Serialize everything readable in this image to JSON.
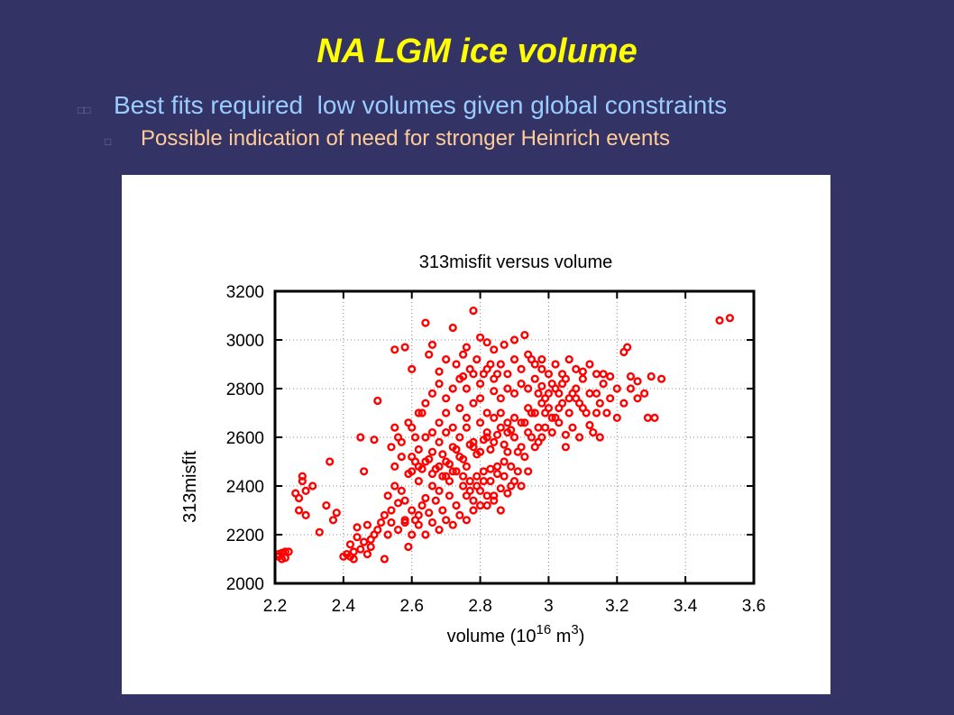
{
  "slide": {
    "title": "NA LGM ice volume",
    "bullets": [
      {
        "text": "Best fits required  low volumes given global constraints"
      },
      {
        "text": "Possible indication of need for stronger Heinrich events"
      }
    ]
  },
  "colors": {
    "background": "#333366",
    "title": "#ffff00",
    "bullet1": "#99ccff",
    "bullet2": "#ffcc99",
    "points": "#ff0000"
  },
  "chart_data": {
    "type": "scatter",
    "title": "313misfit versus volume",
    "xlabel": "volume (10",
    "xlabel_sup1": "16",
    "xlabel_mid": " m",
    "xlabel_sup2": "3",
    "xlabel_end": ")",
    "ylabel": "313misfit",
    "xlim": [
      2.2,
      3.6
    ],
    "ylim": [
      2000,
      3200
    ],
    "xticks": [
      "2.2",
      "2.4",
      "2.6",
      "2.8",
      "3",
      "3.2",
      "3.4",
      "3.6"
    ],
    "yticks": [
      "2000",
      "2200",
      "2400",
      "2600",
      "2800",
      "3000",
      "3200"
    ],
    "grid": true,
    "marker_color": "#ff0000",
    "points": [
      [
        2.21,
        2120
      ],
      [
        2.22,
        2100
      ],
      [
        2.23,
        2130
      ],
      [
        2.21,
        2110
      ],
      [
        2.22,
        2125
      ],
      [
        2.23,
        2105
      ],
      [
        2.24,
        2130
      ],
      [
        2.26,
        2370
      ],
      [
        2.27,
        2300
      ],
      [
        2.28,
        2440
      ],
      [
        2.28,
        2420
      ],
      [
        2.29,
        2380
      ],
      [
        2.31,
        2400
      ],
      [
        2.27,
        2350
      ],
      [
        2.29,
        2280
      ],
      [
        2.33,
        2210
      ],
      [
        2.35,
        2320
      ],
      [
        2.36,
        2500
      ],
      [
        2.37,
        2260
      ],
      [
        2.38,
        2290
      ],
      [
        2.4,
        2110
      ],
      [
        2.42,
        2110
      ],
      [
        2.43,
        2100
      ],
      [
        2.44,
        2230
      ],
      [
        2.45,
        2600
      ],
      [
        2.46,
        2460
      ],
      [
        2.47,
        2120
      ],
      [
        2.48,
        2150
      ],
      [
        2.49,
        2590
      ],
      [
        2.5,
        2750
      ],
      [
        2.52,
        2100
      ],
      [
        2.53,
        2200
      ],
      [
        2.54,
        2250
      ],
      [
        2.55,
        2960
      ],
      [
        2.55,
        2400
      ],
      [
        2.56,
        2330
      ],
      [
        2.57,
        2380
      ],
      [
        2.58,
        2970
      ],
      [
        2.58,
        2250
      ],
      [
        2.59,
        2150
      ],
      [
        2.6,
        2880
      ],
      [
        2.6,
        2520
      ],
      [
        2.62,
        2280
      ],
      [
        2.63,
        2700
      ],
      [
        2.64,
        3070
      ],
      [
        2.65,
        2940
      ],
      [
        2.66,
        2980
      ],
      [
        2.68,
        2870
      ],
      [
        2.7,
        2920
      ],
      [
        2.72,
        3050
      ],
      [
        2.75,
        2850
      ],
      [
        2.76,
        2970
      ],
      [
        2.78,
        3120
      ],
      [
        2.8,
        3010
      ],
      [
        2.82,
        2990
      ],
      [
        2.84,
        2960
      ],
      [
        2.87,
        2980
      ],
      [
        2.9,
        3000
      ],
      [
        2.93,
        3020
      ],
      [
        2.95,
        2920
      ],
      [
        2.98,
        2880
      ],
      [
        3.0,
        2860
      ],
      [
        3.02,
        2800
      ],
      [
        3.04,
        2820
      ],
      [
        3.06,
        2760
      ],
      [
        3.08,
        2880
      ],
      [
        3.1,
        2840
      ],
      [
        3.12,
        2780
      ],
      [
        3.14,
        2700
      ],
      [
        3.15,
        2600
      ],
      [
        3.16,
        2860
      ],
      [
        3.18,
        2850
      ],
      [
        3.2,
        2680
      ],
      [
        3.22,
        2950
      ],
      [
        3.24,
        2850
      ],
      [
        3.26,
        2830
      ],
      [
        3.28,
        2780
      ],
      [
        3.3,
        2850
      ],
      [
        3.31,
        2680
      ],
      [
        3.29,
        2680
      ],
      [
        3.23,
        2970
      ],
      [
        3.33,
        2840
      ],
      [
        3.5,
        3080
      ],
      [
        3.53,
        3090
      ],
      [
        2.62,
        2420
      ],
      [
        2.64,
        2350
      ],
      [
        2.66,
        2450
      ],
      [
        2.68,
        2380
      ],
      [
        2.7,
        2500
      ],
      [
        2.72,
        2460
      ],
      [
        2.74,
        2520
      ],
      [
        2.76,
        2480
      ],
      [
        2.78,
        2560
      ],
      [
        2.8,
        2540
      ],
      [
        2.82,
        2600
      ],
      [
        2.84,
        2580
      ],
      [
        2.86,
        2640
      ],
      [
        2.88,
        2620
      ],
      [
        2.9,
        2680
      ],
      [
        2.92,
        2660
      ],
      [
        2.94,
        2720
      ],
      [
        2.96,
        2700
      ],
      [
        2.98,
        2740
      ],
      [
        3.0,
        2720
      ],
      [
        3.02,
        2680
      ],
      [
        3.04,
        2740
      ],
      [
        3.06,
        2700
      ],
      [
        3.08,
        2760
      ],
      [
        3.1,
        2720
      ],
      [
        3.12,
        2650
      ],
      [
        3.14,
        2780
      ],
      [
        2.58,
        2340
      ],
      [
        2.6,
        2300
      ],
      [
        2.61,
        2260
      ],
      [
        2.63,
        2320
      ],
      [
        2.65,
        2290
      ],
      [
        2.67,
        2340
      ],
      [
        2.69,
        2300
      ],
      [
        2.71,
        2360
      ],
      [
        2.73,
        2320
      ],
      [
        2.75,
        2400
      ],
      [
        2.77,
        2380
      ],
      [
        2.79,
        2440
      ],
      [
        2.81,
        2420
      ],
      [
        2.83,
        2470
      ],
      [
        2.85,
        2450
      ],
      [
        2.87,
        2500
      ],
      [
        2.89,
        2480
      ],
      [
        2.91,
        2540
      ],
      [
        2.93,
        2520
      ],
      [
        2.95,
        2600
      ],
      [
        2.97,
        2580
      ],
      [
        2.99,
        2640
      ],
      [
        3.01,
        2620
      ],
      [
        3.03,
        2660
      ],
      [
        3.05,
        2610
      ],
      [
        2.66,
        2620
      ],
      [
        2.68,
        2660
      ],
      [
        2.7,
        2700
      ],
      [
        2.72,
        2640
      ],
      [
        2.74,
        2720
      ],
      [
        2.76,
        2680
      ],
      [
        2.78,
        2740
      ],
      [
        2.8,
        2760
      ],
      [
        2.82,
        2700
      ],
      [
        2.84,
        2790
      ],
      [
        2.86,
        2760
      ],
      [
        2.88,
        2800
      ],
      [
        2.9,
        2780
      ],
      [
        2.92,
        2820
      ],
      [
        2.94,
        2800
      ],
      [
        2.96,
        2840
      ],
      [
        2.98,
        2810
      ],
      [
        3.0,
        2780
      ],
      [
        2.62,
        2550
      ],
      [
        2.64,
        2600
      ],
      [
        2.66,
        2540
      ],
      [
        2.68,
        2580
      ],
      [
        2.7,
        2620
      ],
      [
        2.72,
        2560
      ],
      [
        2.74,
        2600
      ],
      [
        2.76,
        2640
      ],
      [
        2.78,
        2580
      ],
      [
        2.8,
        2660
      ],
      [
        2.82,
        2620
      ],
      [
        2.84,
        2680
      ],
      [
        2.86,
        2700
      ],
      [
        2.88,
        2660
      ],
      [
        2.55,
        2480
      ],
      [
        2.57,
        2520
      ],
      [
        2.59,
        2450
      ],
      [
        2.61,
        2500
      ],
      [
        2.63,
        2470
      ],
      [
        2.65,
        2510
      ],
      [
        2.67,
        2470
      ],
      [
        2.69,
        2530
      ],
      [
        2.71,
        2490
      ],
      [
        2.73,
        2550
      ],
      [
        2.75,
        2510
      ],
      [
        2.77,
        2570
      ],
      [
        2.79,
        2530
      ],
      [
        2.81,
        2590
      ],
      [
        2.83,
        2550
      ],
      [
        2.85,
        2610
      ],
      [
        2.87,
        2570
      ],
      [
        2.89,
        2630
      ],
      [
        2.56,
        2220
      ],
      [
        2.58,
        2260
      ],
      [
        2.6,
        2200
      ],
      [
        2.62,
        2240
      ],
      [
        2.64,
        2200
      ],
      [
        2.66,
        2250
      ],
      [
        2.68,
        2220
      ],
      [
        2.7,
        2260
      ],
      [
        2.72,
        2240
      ],
      [
        2.74,
        2280
      ],
      [
        2.76,
        2260
      ],
      [
        2.78,
        2300
      ],
      [
        2.8,
        2320
      ],
      [
        2.82,
        2360
      ],
      [
        2.84,
        2340
      ],
      [
        2.86,
        2390
      ],
      [
        2.88,
        2370
      ],
      [
        2.9,
        2420
      ],
      [
        2.92,
        2400
      ],
      [
        2.94,
        2460
      ],
      [
        2.6,
        2640
      ],
      [
        2.62,
        2700
      ],
      [
        2.64,
        2740
      ],
      [
        2.66,
        2780
      ],
      [
        2.68,
        2820
      ],
      [
        2.7,
        2760
      ],
      [
        2.72,
        2800
      ],
      [
        2.74,
        2840
      ],
      [
        2.76,
        2800
      ],
      [
        2.78,
        2860
      ],
      [
        2.8,
        2820
      ],
      [
        2.82,
        2880
      ],
      [
        2.84,
        2840
      ],
      [
        2.86,
        2900
      ],
      [
        2.88,
        2860
      ],
      [
        2.9,
        2920
      ],
      [
        2.92,
        2880
      ],
      [
        2.94,
        2940
      ],
      [
        2.96,
        2900
      ],
      [
        2.98,
        2920
      ],
      [
        3.02,
        2900
      ],
      [
        3.04,
        2860
      ],
      [
        3.06,
        2920
      ],
      [
        3.08,
        2800
      ],
      [
        3.1,
        2870
      ],
      [
        3.12,
        2900
      ],
      [
        3.14,
        2860
      ],
      [
        3.16,
        2820
      ],
      [
        3.18,
        2760
      ],
      [
        3.2,
        2800
      ],
      [
        3.22,
        2740
      ],
      [
        3.24,
        2800
      ],
      [
        3.26,
        2760
      ],
      [
        3.05,
        2560
      ],
      [
        3.07,
        2640
      ],
      [
        3.09,
        2600
      ],
      [
        3.11,
        2700
      ],
      [
        3.13,
        2620
      ],
      [
        3.15,
        2740
      ],
      [
        3.17,
        2700
      ],
      [
        2.53,
        2360
      ],
      [
        2.54,
        2300
      ],
      [
        2.52,
        2280
      ],
      [
        2.51,
        2250
      ],
      [
        2.5,
        2220
      ],
      [
        2.49,
        2200
      ],
      [
        2.48,
        2180
      ],
      [
        2.47,
        2240
      ],
      [
        2.46,
        2170
      ],
      [
        2.45,
        2140
      ],
      [
        2.44,
        2190
      ],
      [
        2.43,
        2130
      ],
      [
        2.42,
        2160
      ],
      [
        2.41,
        2120
      ],
      [
        2.54,
        2560
      ],
      [
        2.56,
        2600
      ],
      [
        2.55,
        2640
      ],
      [
        2.57,
        2580
      ],
      [
        2.59,
        2660
      ],
      [
        2.61,
        2600
      ],
      [
        2.73,
        2900
      ],
      [
        2.75,
        2940
      ],
      [
        2.77,
        2880
      ],
      [
        2.79,
        2920
      ],
      [
        2.81,
        2860
      ],
      [
        2.83,
        2900
      ],
      [
        2.85,
        2860
      ],
      [
        2.69,
        2440
      ],
      [
        2.71,
        2420
      ],
      [
        2.73,
        2460
      ],
      [
        2.75,
        2440
      ],
      [
        2.77,
        2420
      ],
      [
        2.79,
        2400
      ],
      [
        2.81,
        2460
      ],
      [
        2.83,
        2420
      ],
      [
        2.85,
        2480
      ],
      [
        2.87,
        2440
      ],
      [
        2.89,
        2400
      ],
      [
        2.91,
        2460
      ],
      [
        2.97,
        2780
      ],
      [
        2.99,
        2760
      ],
      [
        3.01,
        2820
      ],
      [
        3.03,
        2780
      ],
      [
        3.05,
        2840
      ],
      [
        3.07,
        2780
      ],
      [
        3.09,
        2740
      ],
      [
        2.93,
        2660
      ],
      [
        2.95,
        2700
      ],
      [
        2.97,
        2640
      ],
      [
        2.99,
        2700
      ],
      [
        3.01,
        2680
      ],
      [
        3.03,
        2720
      ],
      [
        2.76,
        2360
      ],
      [
        2.78,
        2340
      ],
      [
        2.8,
        2380
      ],
      [
        2.82,
        2320
      ],
      [
        2.84,
        2360
      ],
      [
        2.86,
        2300
      ],
      [
        2.88,
        2540
      ],
      [
        2.9,
        2600
      ],
      [
        2.92,
        2560
      ],
      [
        2.94,
        2620
      ],
      [
        2.96,
        2560
      ],
      [
        2.98,
        2600
      ],
      [
        2.6,
        2460
      ],
      [
        2.62,
        2480
      ],
      [
        2.64,
        2500
      ],
      [
        2.66,
        2400
      ],
      [
        2.68,
        2480
      ],
      [
        2.7,
        2440
      ]
    ]
  }
}
